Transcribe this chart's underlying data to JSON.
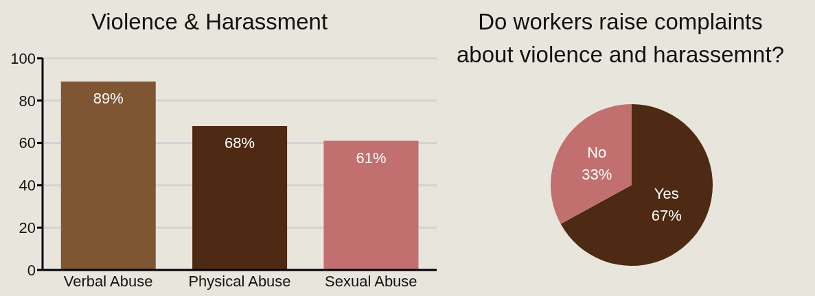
{
  "chart_data": [
    {
      "type": "bar",
      "title": "Violence & Harassment",
      "categories": [
        "Verbal Abuse",
        "Physical Abuse",
        "Sexual Abuse"
      ],
      "values": [
        89,
        68,
        61
      ],
      "colors": [
        "#7f5634",
        "#4e2913",
        "#c26f70"
      ],
      "value_labels": [
        "89%",
        "68%",
        "61%"
      ],
      "ylim": [
        0,
        100
      ],
      "yticks": [
        0,
        20,
        40,
        60,
        80,
        100
      ],
      "grid": "y",
      "legend": false
    },
    {
      "type": "pie",
      "title": "Do workers raise complaints\nabout violence and harassemnt?",
      "categories": [
        "Yes",
        "No"
      ],
      "values": [
        67,
        33
      ],
      "colors": [
        "#4e2913",
        "#c26f70"
      ],
      "value_labels": [
        "67%",
        "33%"
      ],
      "legend": false
    }
  ]
}
